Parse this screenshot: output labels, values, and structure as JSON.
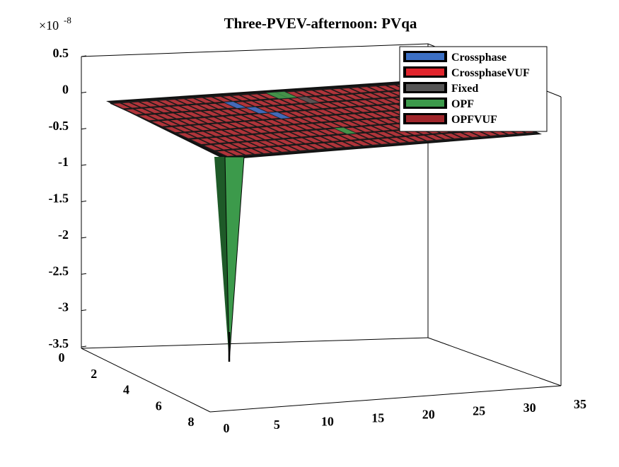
{
  "chart_data": {
    "type": "3d-stacked-bar",
    "title": "Three-PVEV-afternoon: PVqa",
    "exponent_label": "×10",
    "exponent_power": "-8",
    "zlim": [
      -3.5,
      0.5
    ],
    "z_ticks": [
      "0.5",
      "0",
      "-0.5",
      "-1",
      "-1.5",
      "-2",
      "-2.5",
      "-3",
      "-3.5"
    ],
    "y_ticks": [
      "0",
      "2",
      "4",
      "6",
      "8"
    ],
    "x_ticks": [
      "0",
      "5",
      "10",
      "15",
      "20",
      "25",
      "30",
      "35"
    ],
    "legend": [
      {
        "name": "Crossphase",
        "color": "#3b6fc4"
      },
      {
        "name": "CrossphaseVUF",
        "color": "#e0242c"
      },
      {
        "name": "Fixed",
        "color": "#555555"
      },
      {
        "name": "OPF",
        "color": "#3c9a4b"
      },
      {
        "name": "OPFVUF",
        "color": "#a0262b"
      }
    ],
    "series_note": "All series ≈ 0 except a single OPF spike",
    "spike": {
      "series": "OPF",
      "x": 1,
      "y": 8,
      "value": -3.5
    }
  }
}
